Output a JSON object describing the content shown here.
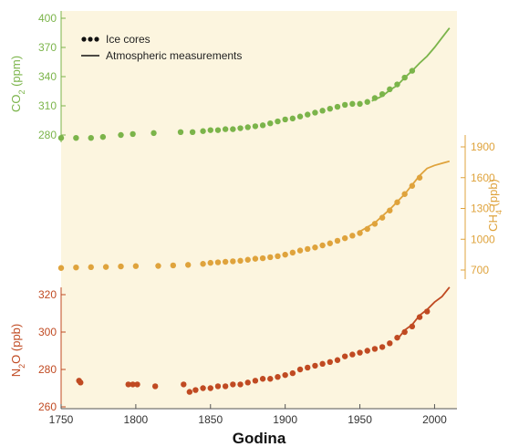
{
  "chart_data": {
    "type": "scatter",
    "xlabel": "Godina",
    "xlim": [
      1750,
      2015
    ],
    "x_ticks": [
      1750,
      1800,
      1850,
      1900,
      1950,
      2000
    ],
    "legend": {
      "placement": "top-left",
      "entries": [
        {
          "marker": "dots",
          "label": "Ice cores"
        },
        {
          "marker": "line",
          "label": "Atmospheric measurements"
        }
      ]
    },
    "background_color": "#fcf5df",
    "series": [
      {
        "name": "CO2",
        "axis_label": "CO2 (ppm)",
        "axis_side": "left",
        "color": "#7bb44a",
        "ticks": [
          280,
          310,
          340,
          370,
          400
        ],
        "ice_core_points": [
          [
            1750,
            277
          ],
          [
            1760,
            277
          ],
          [
            1770,
            277
          ],
          [
            1778,
            278
          ],
          [
            1790,
            280
          ],
          [
            1798,
            281
          ],
          [
            1812,
            282
          ],
          [
            1830,
            283
          ],
          [
            1838,
            283
          ],
          [
            1845,
            284
          ],
          [
            1850,
            285
          ],
          [
            1855,
            285
          ],
          [
            1860,
            286
          ],
          [
            1865,
            286
          ],
          [
            1870,
            287
          ],
          [
            1875,
            288
          ],
          [
            1880,
            289
          ],
          [
            1885,
            290
          ],
          [
            1890,
            292
          ],
          [
            1895,
            294
          ],
          [
            1900,
            296
          ],
          [
            1905,
            297
          ],
          [
            1910,
            299
          ],
          [
            1915,
            301
          ],
          [
            1920,
            303
          ],
          [
            1925,
            305
          ],
          [
            1930,
            307
          ],
          [
            1935,
            309
          ],
          [
            1940,
            311
          ],
          [
            1945,
            312
          ],
          [
            1950,
            312
          ],
          [
            1955,
            314
          ],
          [
            1960,
            318
          ],
          [
            1965,
            322
          ],
          [
            1970,
            327
          ],
          [
            1975,
            332
          ],
          [
            1980,
            339
          ],
          [
            1985,
            346
          ]
        ],
        "measured_line": [
          [
            1958,
            315
          ],
          [
            1965,
            320
          ],
          [
            1970,
            326
          ],
          [
            1975,
            331
          ],
          [
            1980,
            339
          ],
          [
            1985,
            346
          ],
          [
            1990,
            354
          ],
          [
            1995,
            361
          ],
          [
            2000,
            370
          ],
          [
            2005,
            380
          ],
          [
            2010,
            390
          ]
        ]
      },
      {
        "name": "CH4",
        "axis_label": "CH4 (ppb)",
        "axis_side": "right",
        "color": "#dfa33c",
        "ticks": [
          700,
          1000,
          1300,
          1600,
          1900
        ],
        "ice_core_points": [
          [
            1750,
            720
          ],
          [
            1760,
            725
          ],
          [
            1770,
            728
          ],
          [
            1780,
            730
          ],
          [
            1790,
            735
          ],
          [
            1800,
            738
          ],
          [
            1815,
            740
          ],
          [
            1825,
            745
          ],
          [
            1835,
            750
          ],
          [
            1845,
            760
          ],
          [
            1850,
            770
          ],
          [
            1855,
            775
          ],
          [
            1860,
            780
          ],
          [
            1865,
            785
          ],
          [
            1870,
            790
          ],
          [
            1875,
            800
          ],
          [
            1880,
            810
          ],
          [
            1885,
            815
          ],
          [
            1890,
            825
          ],
          [
            1895,
            835
          ],
          [
            1900,
            850
          ],
          [
            1905,
            870
          ],
          [
            1910,
            890
          ],
          [
            1915,
            905
          ],
          [
            1920,
            920
          ],
          [
            1925,
            940
          ],
          [
            1930,
            960
          ],
          [
            1935,
            985
          ],
          [
            1940,
            1010
          ],
          [
            1945,
            1035
          ],
          [
            1950,
            1060
          ],
          [
            1955,
            1100
          ],
          [
            1960,
            1150
          ],
          [
            1965,
            1210
          ],
          [
            1970,
            1280
          ],
          [
            1975,
            1360
          ],
          [
            1980,
            1440
          ],
          [
            1985,
            1520
          ],
          [
            1990,
            1600
          ]
        ],
        "measured_line": [
          [
            1950,
            1075
          ],
          [
            1960,
            1160
          ],
          [
            1970,
            1290
          ],
          [
            1980,
            1440
          ],
          [
            1985,
            1530
          ],
          [
            1990,
            1620
          ],
          [
            1995,
            1690
          ],
          [
            2000,
            1720
          ],
          [
            2005,
            1740
          ],
          [
            2010,
            1760
          ]
        ]
      },
      {
        "name": "N2O",
        "axis_label": "N2O (ppb)",
        "axis_side": "left",
        "color": "#c04a22",
        "ticks": [
          260,
          280,
          300,
          320
        ],
        "ice_core_points": [
          [
            1762,
            274
          ],
          [
            1763,
            273
          ],
          [
            1795,
            272
          ],
          [
            1798,
            272
          ],
          [
            1801,
            272
          ],
          [
            1813,
            271
          ],
          [
            1832,
            272
          ],
          [
            1836,
            268
          ],
          [
            1840,
            269
          ],
          [
            1845,
            270
          ],
          [
            1850,
            270
          ],
          [
            1855,
            271
          ],
          [
            1860,
            271
          ],
          [
            1865,
            272
          ],
          [
            1870,
            272
          ],
          [
            1875,
            273
          ],
          [
            1880,
            274
          ],
          [
            1885,
            275
          ],
          [
            1890,
            275
          ],
          [
            1895,
            276
          ],
          [
            1900,
            277
          ],
          [
            1905,
            278
          ],
          [
            1910,
            280
          ],
          [
            1915,
            281
          ],
          [
            1920,
            282
          ],
          [
            1925,
            283
          ],
          [
            1930,
            284
          ],
          [
            1935,
            285
          ],
          [
            1940,
            287
          ],
          [
            1945,
            288
          ],
          [
            1950,
            289
          ],
          [
            1955,
            290
          ],
          [
            1960,
            291
          ],
          [
            1965,
            292
          ],
          [
            1970,
            294
          ],
          [
            1975,
            297
          ],
          [
            1980,
            300
          ],
          [
            1985,
            303
          ],
          [
            1990,
            308
          ],
          [
            1995,
            311
          ]
        ],
        "measured_line": [
          [
            1975,
            296
          ],
          [
            1980,
            301
          ],
          [
            1985,
            304
          ],
          [
            1990,
            309
          ],
          [
            1995,
            312
          ],
          [
            2000,
            316
          ],
          [
            2005,
            319
          ],
          [
            2010,
            324
          ]
        ]
      }
    ]
  }
}
